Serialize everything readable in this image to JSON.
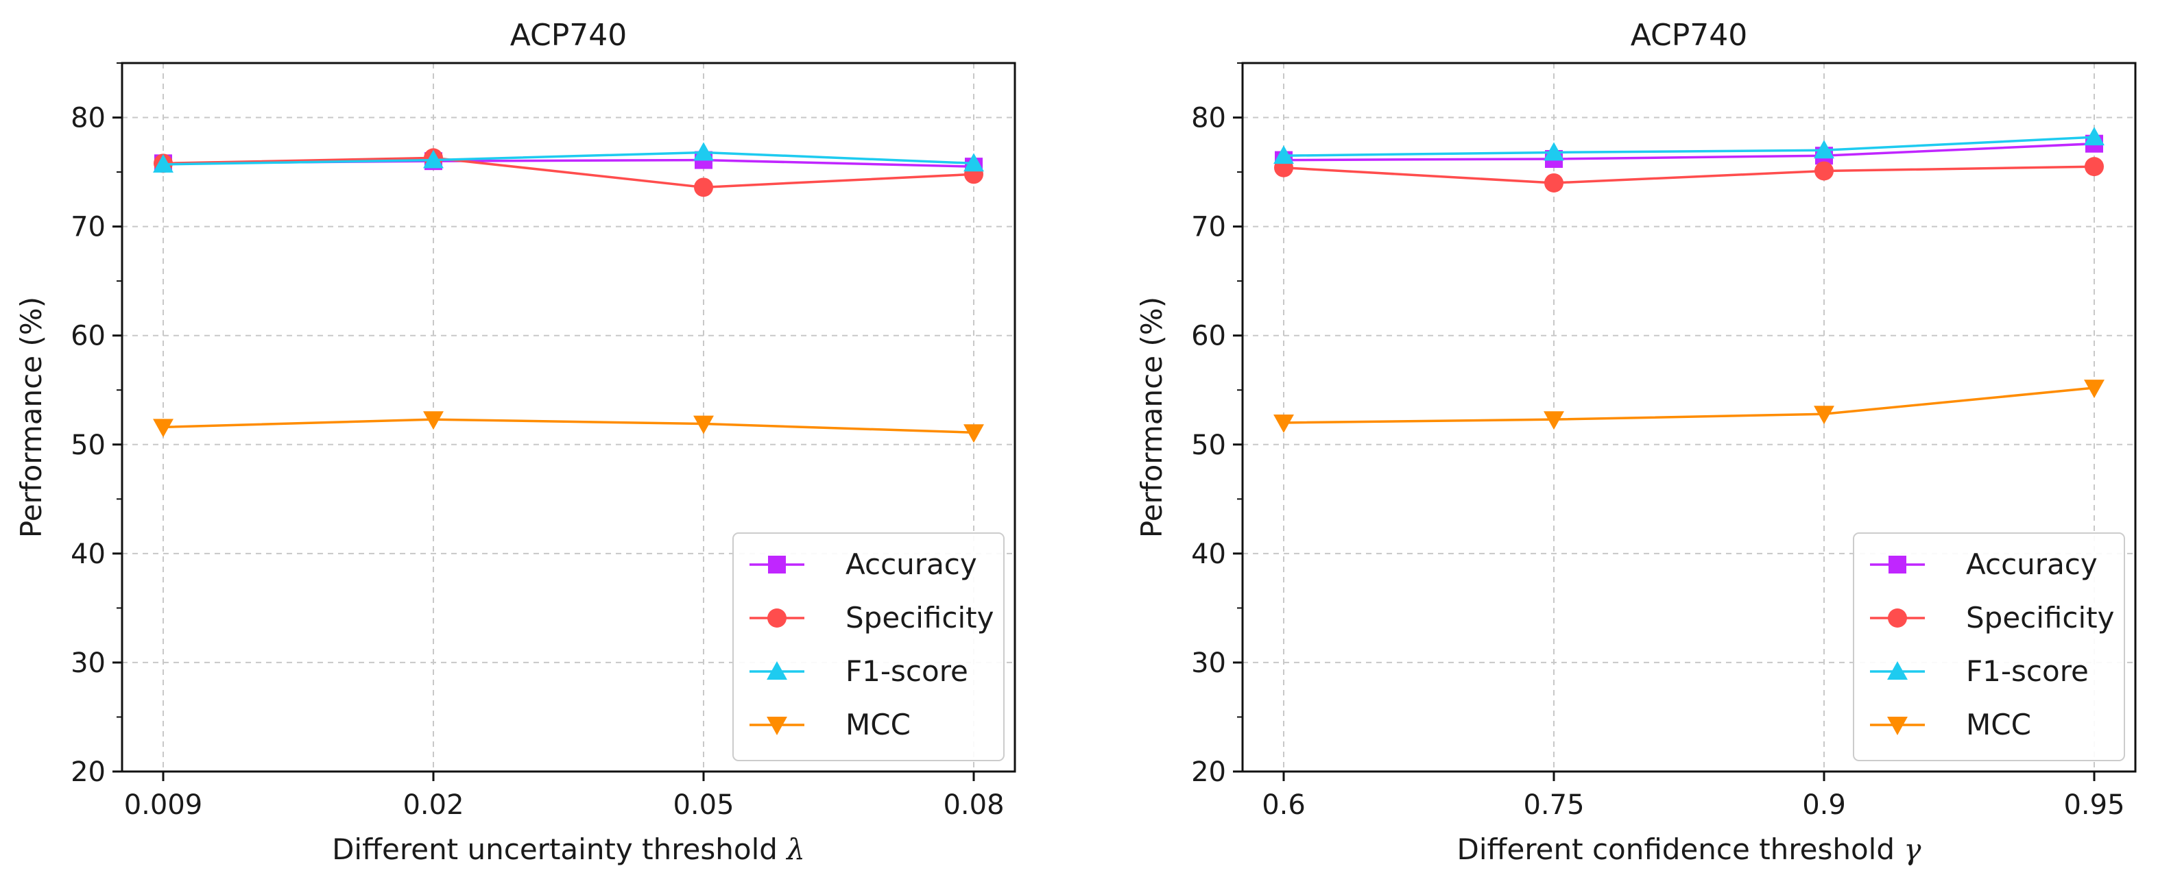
{
  "chart_data": [
    {
      "type": "line",
      "title": "ACP740",
      "xlabel": "Different uncertainty threshold",
      "xlabel_symbol": "λ",
      "ylabel": "Performance (%)",
      "categories": [
        "0.009",
        "0.02",
        "0.05",
        "0.08"
      ],
      "ylim": [
        20,
        85
      ],
      "yticks": [
        20,
        30,
        40,
        50,
        60,
        70,
        80
      ],
      "grid": true,
      "legend_position": "lower-right",
      "series": [
        {
          "name": "Accuracy",
          "marker": "square",
          "color": "#c026ff",
          "values": [
            75.8,
            76.0,
            76.1,
            75.5
          ]
        },
        {
          "name": "Specificity",
          "marker": "circle",
          "color": "#ff4d4d",
          "values": [
            75.8,
            76.3,
            73.6,
            74.8
          ]
        },
        {
          "name": "F1-score",
          "marker": "triangle-up",
          "color": "#1ecbf0",
          "values": [
            75.7,
            76.1,
            76.8,
            75.8
          ]
        },
        {
          "name": "MCC",
          "marker": "triangle-down",
          "color": "#ff8c00",
          "values": [
            51.6,
            52.3,
            51.9,
            51.1
          ]
        }
      ]
    },
    {
      "type": "line",
      "title": "ACP740",
      "xlabel": "Different confidence threshold",
      "xlabel_symbol": "γ",
      "ylabel": "Performance (%)",
      "categories": [
        "0.6",
        "0.75",
        "0.9",
        "0.95"
      ],
      "ylim": [
        20,
        85
      ],
      "yticks": [
        20,
        30,
        40,
        50,
        60,
        70,
        80
      ],
      "grid": true,
      "legend_position": "lower-right",
      "series": [
        {
          "name": "Accuracy",
          "marker": "square",
          "color": "#c026ff",
          "values": [
            76.1,
            76.2,
            76.5,
            77.6
          ]
        },
        {
          "name": "Specificity",
          "marker": "circle",
          "color": "#ff4d4d",
          "values": [
            75.4,
            74.0,
            75.1,
            75.5
          ]
        },
        {
          "name": "F1-score",
          "marker": "triangle-up",
          "color": "#1ecbf0",
          "values": [
            76.5,
            76.8,
            77.0,
            78.2
          ]
        },
        {
          "name": "MCC",
          "marker": "triangle-down",
          "color": "#ff8c00",
          "values": [
            52.0,
            52.3,
            52.8,
            55.2
          ]
        }
      ]
    }
  ]
}
